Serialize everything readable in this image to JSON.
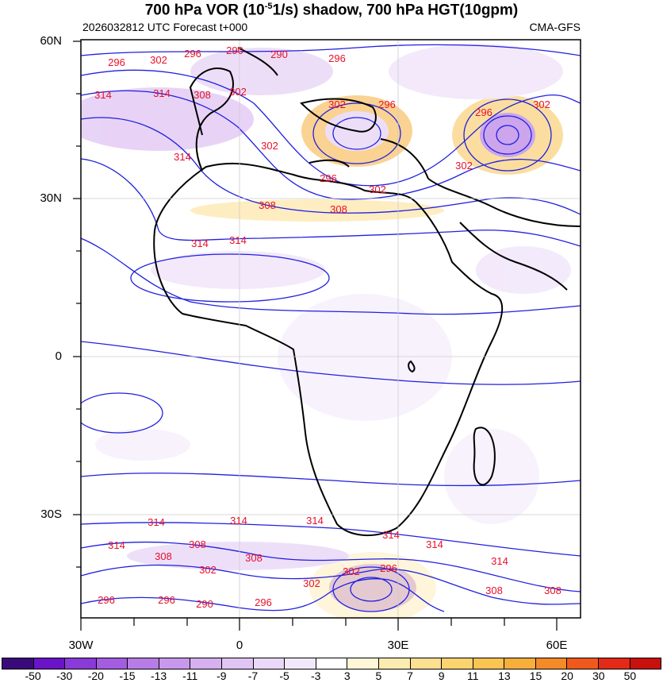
{
  "header": {
    "title_part1": "700 hPa  VOR (10",
    "title_exp": "-5",
    "title_part2": "1/s) shadow, 700 hPa HGT(10gpm)",
    "run_info": "2026032812 UTC Forecast t+000",
    "model": "CMA-GFS"
  },
  "axes": {
    "lat_labels": [
      "60N",
      "30N",
      "0",
      "30S"
    ],
    "lon_labels": [
      "30W",
      "0",
      "30E",
      "60E"
    ]
  },
  "contour_labels": [
    {
      "text": "296"
    },
    {
      "text": "302"
    },
    {
      "text": "296"
    },
    {
      "text": "290"
    },
    {
      "text": "290"
    },
    {
      "text": "296"
    },
    {
      "text": "302"
    },
    {
      "text": "314"
    },
    {
      "text": "314"
    },
    {
      "text": "308"
    },
    {
      "text": "302"
    },
    {
      "text": "296"
    },
    {
      "text": "296"
    },
    {
      "text": "302"
    },
    {
      "text": "314"
    },
    {
      "text": "302"
    },
    {
      "text": "296"
    },
    {
      "text": "302"
    },
    {
      "text": "302"
    },
    {
      "text": "308"
    },
    {
      "text": "308"
    },
    {
      "text": "314"
    },
    {
      "text": "314"
    },
    {
      "text": "314"
    },
    {
      "text": "314"
    },
    {
      "text": "314"
    },
    {
      "text": "314"
    },
    {
      "text": "314"
    },
    {
      "text": "308"
    },
    {
      "text": "308"
    },
    {
      "text": "308"
    },
    {
      "text": "302"
    },
    {
      "text": "302"
    },
    {
      "text": "296"
    },
    {
      "text": "296"
    },
    {
      "text": "302"
    },
    {
      "text": "296"
    },
    {
      "text": "290"
    },
    {
      "text": "296"
    },
    {
      "text": "314"
    },
    {
      "text": "308"
    },
    {
      "text": "308"
    },
    {
      "text": "314"
    }
  ],
  "colorbar": {
    "labels": [
      "-50",
      "-30",
      "-20",
      "-15",
      "-13",
      "-11",
      "-9",
      "-7",
      "-5",
      "-3",
      "3",
      "5",
      "7",
      "9",
      "11",
      "13",
      "15",
      "20",
      "30",
      "50"
    ],
    "colors": [
      "#3a0a7a",
      "#6a14c8",
      "#8a3ad8",
      "#a45ce0",
      "#b87ce6",
      "#c898ec",
      "#d6b0f0",
      "#e0c4f4",
      "#ead8f8",
      "#f2e8fb",
      "#ffffff",
      "#fff6d8",
      "#fdecb0",
      "#fce090",
      "#fbd470",
      "#f9c452",
      "#f7ae3a",
      "#f48a28",
      "#ef5a1c",
      "#e22a16",
      "#c8100c"
    ]
  }
}
